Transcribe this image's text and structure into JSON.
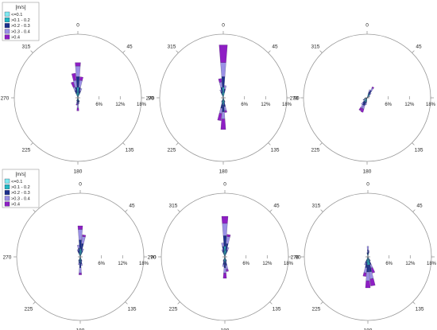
{
  "directions": [
    "0",
    "45",
    "90",
    "135",
    "180",
    "225",
    "270",
    "315"
  ],
  "ring_labels": [
    "6%",
    "12%",
    "18%"
  ],
  "legend": {
    "title": "[m/s]",
    "items": [
      {
        "label": "<=0.1",
        "color": "#7fe9f0"
      },
      {
        "label": ">0.1 - 0.2",
        "color": "#20b7c2"
      },
      {
        "label": ">0.2 - 0.3",
        "color": "#1c2f8c"
      },
      {
        "label": ">0.3 - 0.4",
        "color": "#9b90e6"
      },
      {
        "label": ">0.4",
        "color": "#8e1ec4"
      }
    ]
  },
  "chart_data": [
    {
      "type": "windrose",
      "rmax": 18,
      "rings": [
        6,
        12,
        18
      ],
      "bins": [
        {
          "dir": 0,
          "values": [
            1.0,
            2.0,
            3.0,
            3.0,
            1.0
          ]
        },
        {
          "dir": 10,
          "values": [
            0.5,
            1.0,
            1.5,
            2.0,
            1.0
          ]
        },
        {
          "dir": 350,
          "values": [
            0.5,
            1.0,
            1.5,
            2.0,
            2.0
          ]
        },
        {
          "dir": 340,
          "values": [
            0.4,
            0.8,
            1.0,
            1.0,
            1.5
          ]
        },
        {
          "dir": 20,
          "values": [
            0.4,
            0.6,
            1.0,
            0.8,
            0.0
          ]
        },
        {
          "dir": 180,
          "values": [
            0.4,
            0.5,
            1.0,
            1.0,
            0.8
          ]
        },
        {
          "dir": 170,
          "values": [
            0.3,
            0.4,
            0.6,
            0.4,
            0.0
          ]
        },
        {
          "dir": 190,
          "values": [
            0.3,
            0.4,
            0.6,
            0.5,
            0.3
          ]
        },
        {
          "dir": 160,
          "values": [
            0.3,
            0.5,
            0.4,
            0.0,
            0.0
          ]
        },
        {
          "dir": 200,
          "values": [
            0.3,
            0.3,
            0.3,
            0.0,
            0.0
          ]
        }
      ]
    },
    {
      "type": "windrose",
      "rmax": 18,
      "rings": [
        6,
        12,
        18
      ],
      "bins": [
        {
          "dir": 0,
          "values": [
            1.0,
            2.0,
            3.0,
            4.0,
            5.0
          ]
        },
        {
          "dir": 350,
          "values": [
            0.5,
            1.0,
            1.5,
            1.5,
            1.0
          ]
        },
        {
          "dir": 10,
          "values": [
            0.5,
            1.0,
            1.0,
            1.0,
            0.0
          ]
        },
        {
          "dir": 340,
          "values": [
            0.4,
            0.6,
            0.8,
            0.6,
            0.0
          ]
        },
        {
          "dir": 180,
          "values": [
            0.8,
            1.2,
            2.0,
            2.0,
            3.0
          ]
        },
        {
          "dir": 190,
          "values": [
            0.5,
            1.0,
            1.5,
            1.5,
            2.0
          ]
        },
        {
          "dir": 170,
          "values": [
            0.5,
            0.8,
            1.2,
            1.2,
            0.5
          ]
        },
        {
          "dir": 160,
          "values": [
            0.3,
            0.5,
            0.5,
            0.0,
            0.0
          ]
        },
        {
          "dir": 200,
          "values": [
            0.3,
            0.5,
            0.5,
            0.0,
            0.0
          ]
        }
      ]
    },
    {
      "type": "windrose",
      "rmax": 18,
      "rings": [
        6,
        12,
        18
      ],
      "bins": [
        {
          "dir": 30,
          "values": [
            0.5,
            0.8,
            1.0,
            0.8,
            0.4
          ]
        },
        {
          "dir": 20,
          "values": [
            0.4,
            0.6,
            0.8,
            0.6,
            0.0
          ]
        },
        {
          "dir": 40,
          "values": [
            0.3,
            0.4,
            0.6,
            0.4,
            0.0
          ]
        },
        {
          "dir": 210,
          "values": [
            0.5,
            0.8,
            1.0,
            1.0,
            0.8
          ]
        },
        {
          "dir": 200,
          "values": [
            0.5,
            0.8,
            1.0,
            1.0,
            1.0
          ]
        },
        {
          "dir": 220,
          "values": [
            0.4,
            0.6,
            0.8,
            0.6,
            0.0
          ]
        },
        {
          "dir": 240,
          "values": [
            0.3,
            0.5,
            0.5,
            0.0,
            0.0
          ]
        },
        {
          "dir": 250,
          "values": [
            0.3,
            0.3,
            0.3,
            0.0,
            0.0
          ]
        },
        {
          "dir": 60,
          "values": [
            0.3,
            0.3,
            0.3,
            0.0,
            0.0
          ]
        },
        {
          "dir": 190,
          "values": [
            0.3,
            0.5,
            0.6,
            0.6,
            0.0
          ]
        }
      ]
    },
    {
      "type": "windrose",
      "rmax": 18,
      "rings": [
        6,
        12,
        18
      ],
      "bins": [
        {
          "dir": 0,
          "values": [
            0.8,
            1.5,
            2.5,
            3.0,
            1.0
          ]
        },
        {
          "dir": 10,
          "values": [
            0.6,
            1.2,
            2.0,
            2.0,
            0.5
          ]
        },
        {
          "dir": 350,
          "values": [
            0.4,
            0.8,
            1.2,
            1.0,
            0.0
          ]
        },
        {
          "dir": 20,
          "values": [
            0.4,
            0.6,
            0.8,
            0.6,
            0.0
          ]
        },
        {
          "dir": 340,
          "values": [
            0.4,
            0.6,
            0.8,
            0.4,
            0.0
          ]
        },
        {
          "dir": 180,
          "values": [
            0.6,
            1.0,
            1.5,
            1.5,
            0.5
          ]
        },
        {
          "dir": 170,
          "values": [
            0.4,
            0.6,
            1.0,
            0.5,
            0.0
          ]
        },
        {
          "dir": 190,
          "values": [
            0.4,
            0.6,
            0.8,
            0.5,
            0.0
          ]
        },
        {
          "dir": 160,
          "values": [
            0.3,
            0.5,
            0.5,
            0.0,
            0.0
          ]
        },
        {
          "dir": 200,
          "values": [
            0.3,
            0.5,
            0.5,
            0.0,
            0.0
          ]
        }
      ]
    },
    {
      "type": "windrose",
      "rmax": 18,
      "rings": [
        6,
        12,
        18
      ],
      "bins": [
        {
          "dir": 0,
          "values": [
            1.0,
            2.0,
            3.0,
            3.5,
            2.0
          ]
        },
        {
          "dir": 10,
          "values": [
            0.6,
            1.2,
            2.0,
            2.0,
            0.6
          ]
        },
        {
          "dir": 350,
          "values": [
            0.5,
            1.0,
            1.5,
            1.0,
            0.0
          ]
        },
        {
          "dir": 20,
          "values": [
            0.4,
            0.6,
            1.0,
            0.8,
            0.0
          ]
        },
        {
          "dir": 340,
          "values": [
            0.4,
            0.6,
            0.8,
            0.4,
            0.0
          ]
        },
        {
          "dir": 180,
          "values": [
            0.6,
            1.0,
            1.5,
            1.5,
            1.5
          ]
        },
        {
          "dir": 170,
          "values": [
            0.4,
            0.8,
            1.2,
            1.2,
            0.6
          ]
        },
        {
          "dir": 190,
          "values": [
            0.4,
            0.8,
            1.0,
            0.6,
            0.0
          ]
        },
        {
          "dir": 160,
          "values": [
            0.3,
            0.5,
            0.5,
            0.0,
            0.0
          ]
        },
        {
          "dir": 200,
          "values": [
            0.3,
            0.5,
            0.5,
            0.0,
            0.0
          ]
        }
      ]
    },
    {
      "type": "windrose",
      "rmax": 18,
      "rings": [
        6,
        12,
        18
      ],
      "bins": [
        {
          "dir": 180,
          "values": [
            0.8,
            1.5,
            2.0,
            2.5,
            2.0
          ]
        },
        {
          "dir": 170,
          "values": [
            0.8,
            1.5,
            2.0,
            2.0,
            2.0
          ]
        },
        {
          "dir": 190,
          "values": [
            0.6,
            1.0,
            1.5,
            1.5,
            1.0
          ]
        },
        {
          "dir": 160,
          "values": [
            0.5,
            0.8,
            1.0,
            1.0,
            1.5
          ]
        },
        {
          "dir": 200,
          "values": [
            0.4,
            0.6,
            0.8,
            0.6,
            0.0
          ]
        },
        {
          "dir": 150,
          "values": [
            0.3,
            0.5,
            0.5,
            0.0,
            0.0
          ]
        },
        {
          "dir": 0,
          "values": [
            0.4,
            0.6,
            1.0,
            1.0,
            0.0
          ]
        },
        {
          "dir": 10,
          "values": [
            0.3,
            0.5,
            0.6,
            0.4,
            0.0
          ]
        },
        {
          "dir": 350,
          "values": [
            0.3,
            0.4,
            0.5,
            0.0,
            0.0
          ]
        }
      ]
    }
  ]
}
